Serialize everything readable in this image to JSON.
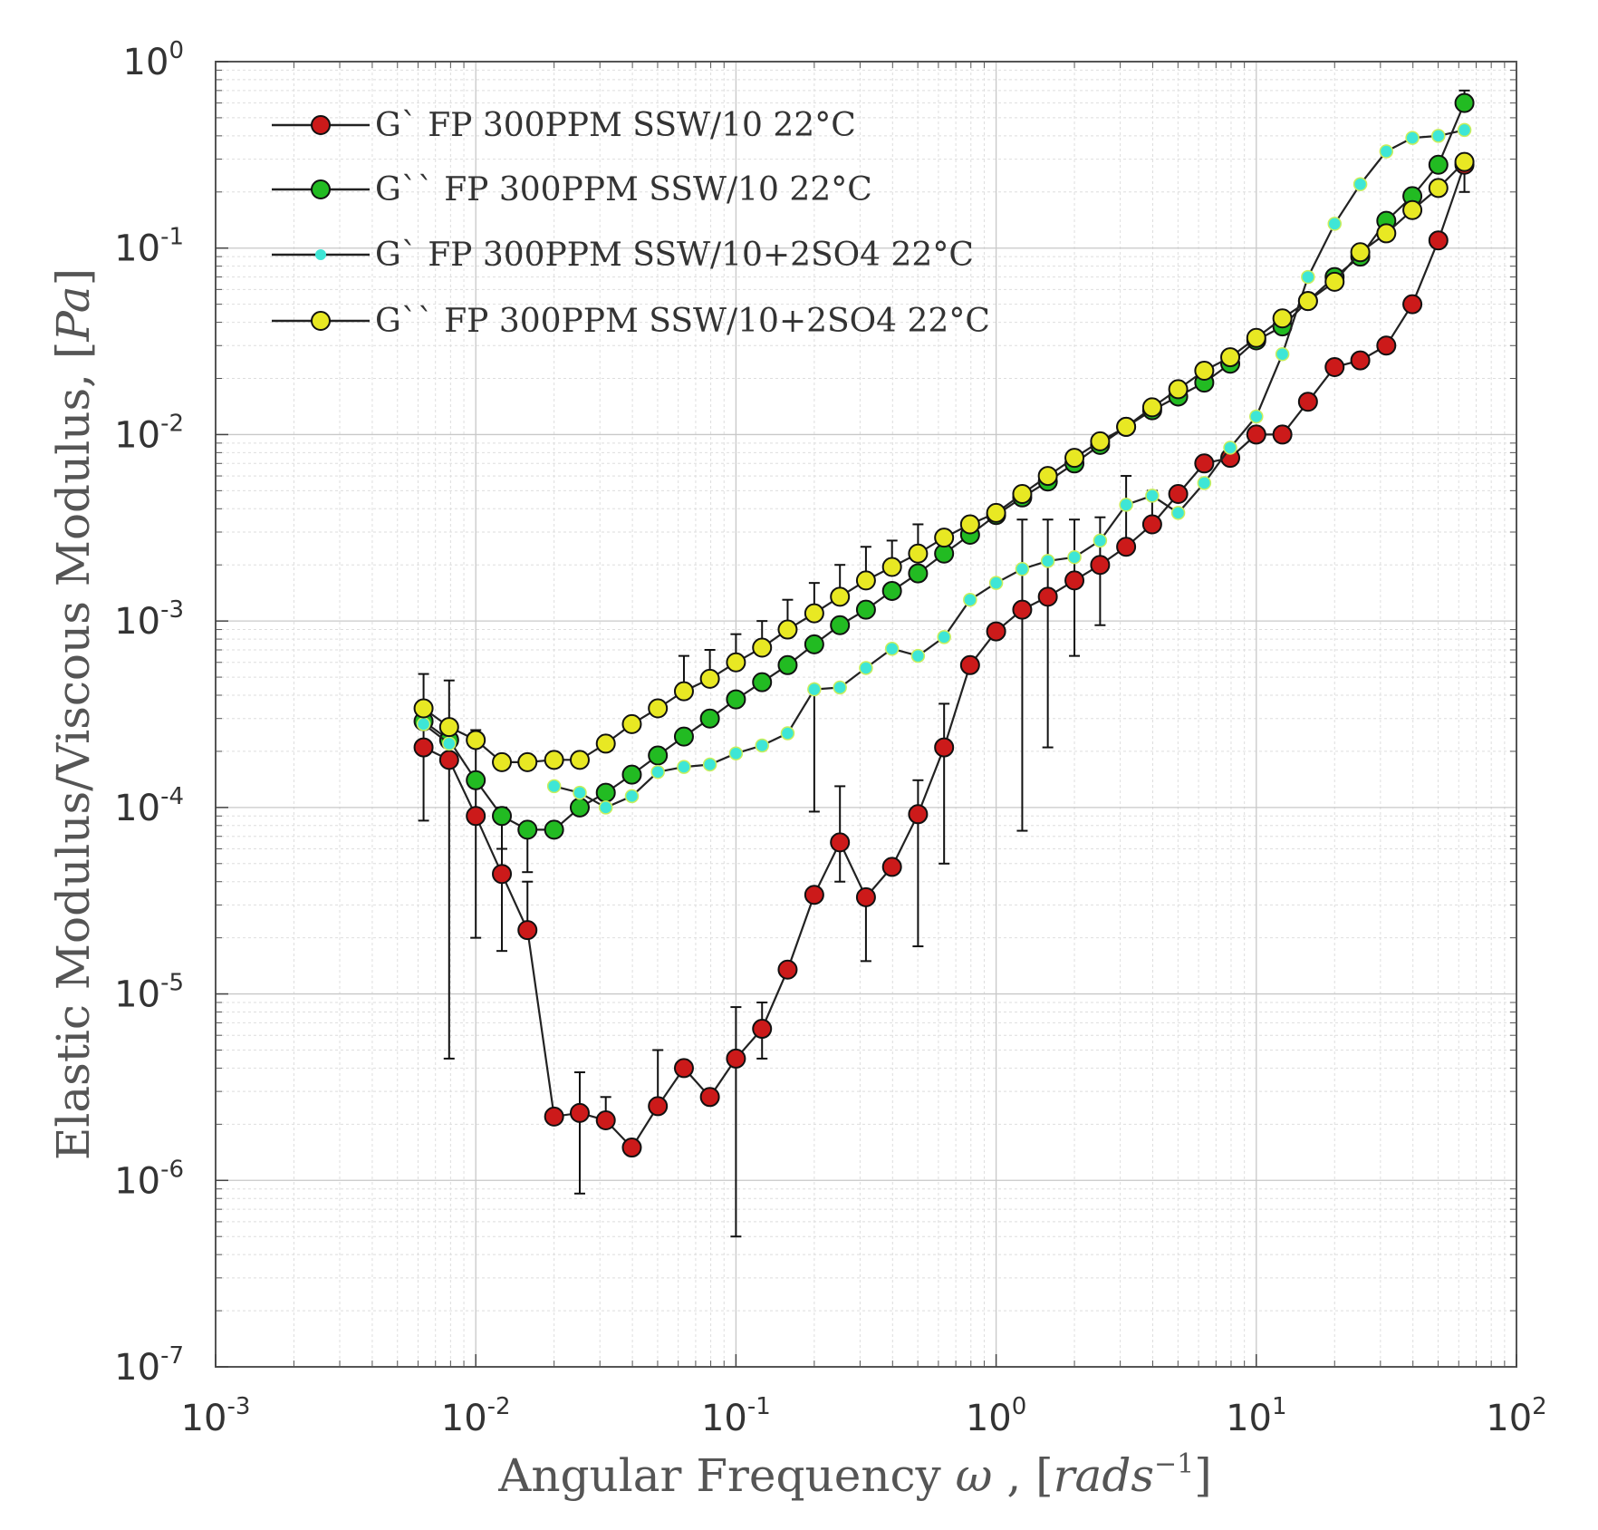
{
  "chart_data": {
    "type": "line",
    "title": "",
    "xlabel": "Angular Frequency ω , [rads⁻¹]",
    "xlabel_parts": {
      "text": "Angular Frequency ",
      "omega": "ω",
      "comma": " , [",
      "unit": "rads",
      "sup": "−1",
      "close": "]"
    },
    "ylabel": "Elastic Modulus/Viscous Modulus, [Pa]",
    "ylabel_parts": {
      "text": "Elastic Modulus/Viscous Modulus, [",
      "unit": "Pa",
      "close": "]"
    },
    "xscale": "log",
    "yscale": "log",
    "xlim": [
      0.001,
      100
    ],
    "ylim": [
      1e-07,
      1
    ],
    "grid": true,
    "legend_position": "top-left",
    "x_ticks": [
      {
        "value": 0.001,
        "base": "10",
        "exp": "-3"
      },
      {
        "value": 0.01,
        "base": "10",
        "exp": "-2"
      },
      {
        "value": 0.1,
        "base": "10",
        "exp": "-1"
      },
      {
        "value": 1,
        "base": "10",
        "exp": "0"
      },
      {
        "value": 10,
        "base": "10",
        "exp": "1"
      },
      {
        "value": 100,
        "base": "10",
        "exp": "2"
      }
    ],
    "y_ticks": [
      {
        "value": 1e-07,
        "base": "10",
        "exp": "-7"
      },
      {
        "value": 1e-06,
        "base": "10",
        "exp": "-6"
      },
      {
        "value": 1e-05,
        "base": "10",
        "exp": "-5"
      },
      {
        "value": 0.0001,
        "base": "10",
        "exp": "-4"
      },
      {
        "value": 0.001,
        "base": "10",
        "exp": "-3"
      },
      {
        "value": 0.01,
        "base": "10",
        "exp": "-2"
      },
      {
        "value": 0.1,
        "base": "10",
        "exp": "-1"
      },
      {
        "value": 1,
        "base": "10",
        "exp": "0"
      }
    ],
    "x": [
      0.0063,
      0.0079,
      0.01,
      0.0126,
      0.0158,
      0.02,
      0.0251,
      0.0316,
      0.0398,
      0.0501,
      0.0631,
      0.0794,
      0.1,
      0.126,
      0.158,
      0.2,
      0.251,
      0.316,
      0.398,
      0.501,
      0.631,
      0.794,
      1,
      1.26,
      1.58,
      2,
      2.51,
      3.16,
      3.98,
      5.01,
      6.31,
      7.94,
      10,
      12.6,
      15.8,
      20,
      25.1,
      31.6,
      39.8,
      50.1,
      63.1
    ],
    "series": [
      {
        "name": "G` FP 300PPM SSW/10 22°C",
        "color": "#cc1a1a",
        "marker": "circle-large",
        "values": [
          0.00021,
          0.00018,
          9e-05,
          4.4e-05,
          2.2e-05,
          2.2e-06,
          2.3e-06,
          2.1e-06,
          1.5e-06,
          2.5e-06,
          4e-06,
          2.8e-06,
          4.5e-06,
          6.5e-06,
          1.35e-05,
          3.4e-05,
          6.5e-05,
          3.3e-05,
          4.8e-05,
          9.2e-05,
          0.00021,
          0.00058,
          0.00088,
          0.00115,
          0.00135,
          0.00165,
          0.002,
          0.0025,
          0.0033,
          0.0048,
          0.007,
          0.0075,
          0.01,
          0.01,
          0.015,
          0.023,
          0.025,
          0.03,
          0.05,
          0.11,
          0.28
        ],
        "err_low": [
          8.5e-05,
          4.5e-06,
          2e-05,
          1.7e-05,
          4e-05,
          null,
          8.5e-07,
          null,
          null,
          5e-06,
          null,
          null,
          5e-07,
          4.5e-06,
          null,
          9.5e-05,
          4e-05,
          1.5e-05,
          null,
          1.8e-05,
          5e-05,
          null,
          null,
          7.5e-05,
          0.00021,
          0.00065,
          0.00095,
          null,
          null,
          null,
          null,
          null,
          null,
          null,
          null,
          null,
          null,
          null,
          null,
          null,
          0.2
        ],
        "err_high": [
          0.00052,
          0.00048,
          0.00026,
          0.0001,
          null,
          null,
          3.8e-06,
          2.8e-06,
          null,
          null,
          null,
          null,
          8.5e-06,
          9e-06,
          null,
          0.00045,
          0.00013,
          null,
          null,
          0.00014,
          0.00036,
          null,
          null,
          0.0035,
          0.0035,
          0.0035,
          0.0036,
          0.006,
          0.005,
          null,
          null,
          null,
          null,
          null,
          null,
          null,
          null,
          null,
          null,
          null,
          null
        ]
      },
      {
        "name": "G`` FP 300PPM SSW/10 22°C",
        "color": "#22bb22",
        "marker": "circle-large",
        "values": [
          0.00029,
          0.00023,
          0.00014,
          9e-05,
          7.6e-05,
          7.6e-05,
          0.0001,
          0.00012,
          0.00015,
          0.00019,
          0.00024,
          0.0003,
          0.00038,
          0.00047,
          0.00058,
          0.00075,
          0.00095,
          0.00115,
          0.00145,
          0.0018,
          0.0023,
          0.0029,
          0.0037,
          0.0046,
          0.0056,
          0.007,
          0.0088,
          0.011,
          0.0135,
          0.016,
          0.019,
          0.024,
          0.032,
          0.038,
          0.052,
          0.07,
          0.09,
          0.14,
          0.19,
          0.28,
          0.6
        ],
        "err_low": [
          null,
          null,
          null,
          6e-05,
          4.5e-05,
          null,
          null,
          null,
          null,
          null,
          null,
          null,
          null,
          null,
          null,
          null,
          null,
          null,
          null,
          null,
          null,
          null,
          null,
          null,
          null,
          null,
          null,
          null,
          null,
          null,
          null,
          null,
          null,
          null,
          null,
          null,
          null,
          null,
          null,
          null,
          null
        ],
        "err_high": [
          null,
          null,
          null,
          null,
          null,
          null,
          null,
          null,
          null,
          null,
          null,
          null,
          null,
          null,
          null,
          null,
          null,
          null,
          null,
          null,
          null,
          null,
          null,
          null,
          null,
          null,
          null,
          null,
          null,
          null,
          null,
          null,
          null,
          null,
          null,
          null,
          null,
          null,
          null,
          null,
          0.7
        ]
      },
      {
        "name": "G` FP 300PPM SSW/10+2SO4 22°C",
        "color": "#3ee6d6",
        "marker": "circle-small",
        "values": [
          0.00028,
          0.00022,
          null,
          null,
          null,
          0.00013,
          0.00012,
          0.0001,
          0.000115,
          0.000155,
          0.000165,
          0.00017,
          0.000195,
          0.000215,
          0.00025,
          0.00043,
          0.00044,
          0.00056,
          0.00071,
          0.00065,
          0.00082,
          0.0013,
          0.0016,
          0.0019,
          0.0021,
          0.0022,
          0.0027,
          0.0042,
          0.0047,
          0.0038,
          0.0055,
          0.0085,
          0.0125,
          0.027,
          0.07,
          0.135,
          0.22,
          0.33,
          0.39,
          0.4,
          0.43
        ],
        "err_low": [
          null,
          null,
          null,
          null,
          null,
          null,
          null,
          null,
          null,
          null,
          null,
          null,
          null,
          null,
          null,
          null,
          null,
          null,
          null,
          null,
          null,
          null,
          null,
          null,
          null,
          null,
          null,
          null,
          null,
          null,
          null,
          null,
          null,
          null,
          null,
          null,
          null,
          null,
          null,
          null,
          null
        ],
        "err_high": [
          null,
          null,
          null,
          null,
          null,
          null,
          null,
          null,
          null,
          null,
          null,
          null,
          null,
          null,
          null,
          null,
          null,
          null,
          null,
          null,
          null,
          null,
          null,
          null,
          null,
          null,
          null,
          null,
          null,
          null,
          null,
          null,
          null,
          null,
          null,
          null,
          null,
          null,
          null,
          null,
          null
        ]
      },
      {
        "name": "G`` FP 300PPM SSW/10+2SO4 22°C",
        "color": "#e8e823",
        "marker": "circle-large",
        "values": [
          0.00034,
          0.00027,
          0.00023,
          0.000175,
          0.000175,
          0.00018,
          0.00018,
          0.00022,
          0.00028,
          0.00034,
          0.00042,
          0.00049,
          0.0006,
          0.00072,
          0.0009,
          0.0011,
          0.00135,
          0.00165,
          0.00195,
          0.0023,
          0.0028,
          0.0033,
          0.0038,
          0.0048,
          0.006,
          0.0075,
          0.0092,
          0.011,
          0.014,
          0.0175,
          0.022,
          0.026,
          0.033,
          0.042,
          0.052,
          0.066,
          0.095,
          0.12,
          0.16,
          0.21,
          0.29
        ],
        "err_low": [
          null,
          null,
          null,
          null,
          null,
          null,
          null,
          null,
          null,
          null,
          null,
          null,
          null,
          null,
          null,
          null,
          null,
          null,
          null,
          null,
          null,
          null,
          null,
          null,
          null,
          null,
          null,
          null,
          null,
          null,
          null,
          null,
          null,
          null,
          null,
          null,
          null,
          null,
          null,
          null,
          null
        ],
        "err_high": [
          null,
          null,
          null,
          null,
          null,
          null,
          null,
          null,
          null,
          null,
          0.00065,
          0.0007,
          0.00085,
          0.001,
          0.0013,
          0.0016,
          0.002,
          0.0025,
          0.0027,
          0.0033,
          null,
          null,
          null,
          null,
          null,
          null,
          null,
          null,
          null,
          null,
          null,
          null,
          null,
          null,
          null,
          null,
          null,
          null,
          null,
          null,
          null
        ]
      }
    ]
  }
}
